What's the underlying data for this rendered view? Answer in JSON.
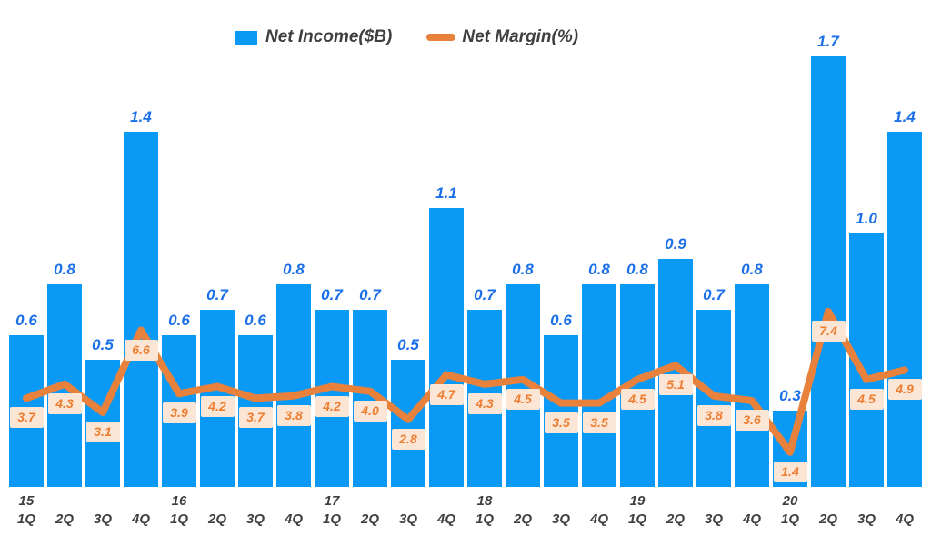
{
  "legend": {
    "income_label": "Net Income($B)",
    "margin_label": "Net Margin(%)"
  },
  "colors": {
    "bar_color": "#0A9AF5",
    "bar_label_color": "#1B6FE8",
    "line_color": "#E8813C",
    "margin_label_bg": "#FBE5D4",
    "margin_label_text": "#ED7D31",
    "axis_text_color": "#3F3F3F"
  },
  "chart_data": {
    "type": "bar",
    "title": "",
    "xlabel": "",
    "ylabel": "",
    "grid": false,
    "legend_position": "top-center",
    "x_axis": {
      "years": [
        "15",
        "16",
        "17",
        "18",
        "19",
        "20"
      ],
      "quarters": [
        "1Q",
        "2Q",
        "3Q",
        "4Q"
      ]
    },
    "categories": [
      "15 1Q",
      "15 2Q",
      "15 3Q",
      "15 4Q",
      "16 1Q",
      "16 2Q",
      "16 3Q",
      "16 4Q",
      "17 1Q",
      "17 2Q",
      "17 3Q",
      "17 4Q",
      "18 1Q",
      "18 2Q",
      "18 3Q",
      "18 4Q",
      "19 1Q",
      "19 2Q",
      "19 3Q",
      "19 4Q",
      "20 1Q",
      "20 2Q",
      "20 3Q",
      "20 4Q"
    ],
    "series": [
      {
        "name": "Net Income($B)",
        "type": "bar",
        "axis": "left",
        "ylim": [
          0,
          1.9
        ],
        "values": [
          0.6,
          0.8,
          0.5,
          1.4,
          0.6,
          0.7,
          0.6,
          0.8,
          0.7,
          0.7,
          0.5,
          1.1,
          0.7,
          0.8,
          0.6,
          0.8,
          0.8,
          0.9,
          0.7,
          0.8,
          0.3,
          1.7,
          1.0,
          1.4
        ]
      },
      {
        "name": "Net Margin(%)",
        "type": "line",
        "axis": "right",
        "ylim": [
          0,
          8.5
        ],
        "values": [
          3.7,
          4.3,
          3.1,
          6.6,
          3.9,
          4.2,
          3.7,
          3.8,
          4.2,
          4.0,
          2.8,
          4.7,
          4.3,
          4.5,
          3.5,
          3.5,
          4.5,
          5.1,
          3.8,
          3.6,
          1.4,
          7.4,
          4.5,
          4.9
        ]
      }
    ]
  }
}
